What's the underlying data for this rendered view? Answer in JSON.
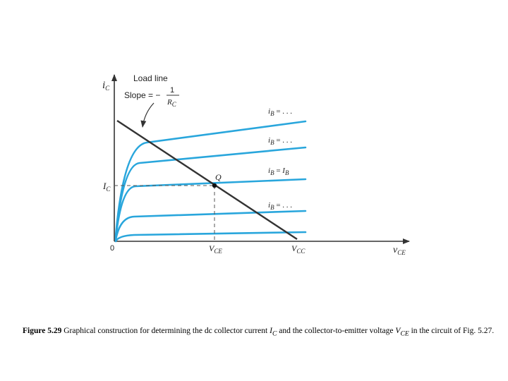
{
  "diagram": {
    "y_axis_label": "i",
    "y_axis_sub": "C",
    "x_axis_label": "v",
    "x_axis_sub": "CE",
    "origin_label": "0",
    "load_line_title": "Load line",
    "slope_label": "Slope = −",
    "slope_numerator": "1",
    "slope_denominator": "R",
    "slope_denominator_sub": "C",
    "q_label": "Q",
    "ic_tick": "I",
    "ic_tick_sub": "C",
    "vce_tick": "V",
    "vce_tick_sub": "CE",
    "vcc_tick": "V",
    "vcc_tick_sub": "CC",
    "curve_labels": [
      {
        "main": "i",
        "sub": "B",
        "rest": " = . . ."
      },
      {
        "main": "i",
        "sub": "B",
        "rest": " = . . ."
      },
      {
        "main": "i",
        "sub": "B",
        "rest": " = ",
        "rhs": "I",
        "rhs_sub": "B"
      },
      {
        "main": "i",
        "sub": "B",
        "rest": " = . . ."
      }
    ],
    "colors": {
      "curve": "#29a6dc",
      "load_line": "#333333",
      "axis": "#333333"
    }
  },
  "caption": {
    "fig_no": "Figure 5.29",
    "text_a": "  Graphical construction for determining the dc collector current ",
    "ic": "I",
    "ic_sub": "C",
    "text_b": " and the collector-to-emitter voltage ",
    "vce": "V",
    "vce_sub": "CE",
    "text_c": " in the circuit of Fig. 5.27."
  }
}
